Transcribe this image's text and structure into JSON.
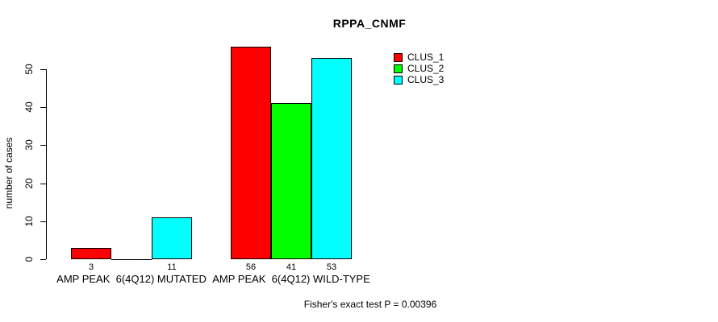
{
  "chart_data": {
    "type": "bar",
    "title": "RPPA_CNMF",
    "ylabel": "number of cases",
    "xlabel": "",
    "ylim": [
      0,
      56
    ],
    "y_ticks": [
      0,
      10,
      20,
      30,
      40,
      50
    ],
    "grid": false,
    "legend_position": "top-right",
    "categories": [
      "AMP PEAK  6(4Q12) MUTATED",
      "AMP PEAK  6(4Q12) WILD-TYPE"
    ],
    "series": [
      {
        "name": "CLUS_1",
        "color": "#ff0000",
        "values": [
          3,
          56
        ]
      },
      {
        "name": "CLUS_2",
        "color": "#00ff00",
        "values": [
          0,
          41
        ]
      },
      {
        "name": "CLUS_3",
        "color": "#00ffff",
        "values": [
          11,
          53
        ]
      }
    ],
    "show_bar_values": true,
    "hide_zero_bar_values": true,
    "annotation": "Fisher's exact test P = 0.00396"
  }
}
